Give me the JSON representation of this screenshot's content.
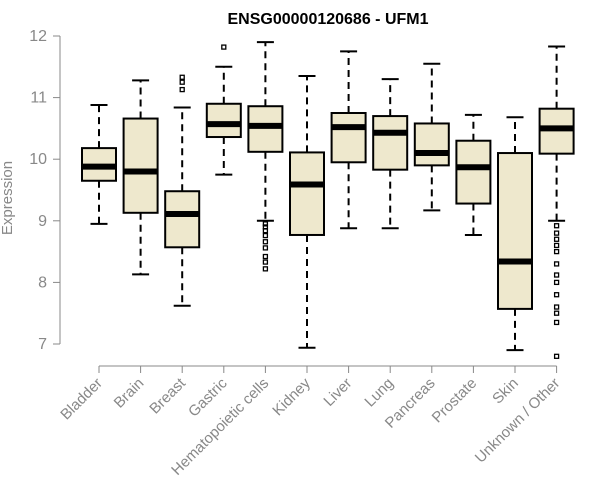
{
  "chart_data": {
    "type": "box",
    "title": "ENSG00000120686 - UFM1",
    "xlabel": "",
    "ylabel": "Expression",
    "ylim": [
      6.85,
      12.0
    ],
    "yticks": [
      7,
      8,
      9,
      10,
      11,
      12
    ],
    "box_fill": "#eee8cd",
    "grid": false,
    "categories": [
      "Bladder",
      "Brain",
      "Breast",
      "Gastric",
      "Hematopoietic cells",
      "Kidney",
      "Liver",
      "Lung",
      "Pancreas",
      "Prostate",
      "Skin",
      "Unknown / Other"
    ],
    "boxes": [
      {
        "label": "Bladder",
        "whisker_low": 8.95,
        "q1": 9.65,
        "median": 9.88,
        "q3": 10.18,
        "whisker_high": 10.88,
        "outliers": []
      },
      {
        "label": "Brain",
        "whisker_low": 8.13,
        "q1": 9.13,
        "median": 9.8,
        "q3": 10.66,
        "whisker_high": 11.28,
        "outliers": []
      },
      {
        "label": "Breast",
        "whisker_low": 7.62,
        "q1": 8.57,
        "median": 9.11,
        "q3": 9.48,
        "whisker_high": 10.84,
        "outliers": [
          11.13,
          11.25,
          11.33
        ]
      },
      {
        "label": "Gastric",
        "whisker_low": 9.75,
        "q1": 10.36,
        "median": 10.57,
        "q3": 10.9,
        "whisker_high": 11.5,
        "outliers": [
          11.82
        ]
      },
      {
        "label": "Hematopoietic cells",
        "whisker_low": 9.0,
        "q1": 10.12,
        "median": 10.54,
        "q3": 10.86,
        "whisker_high": 11.9,
        "outliers": [
          8.22,
          8.33,
          8.42,
          8.56,
          8.66,
          8.76,
          8.84,
          8.9,
          8.95
        ]
      },
      {
        "label": "Kidney",
        "whisker_low": 6.94,
        "q1": 8.77,
        "median": 9.59,
        "q3": 10.11,
        "whisker_high": 11.35,
        "outliers": []
      },
      {
        "label": "Liver",
        "whisker_low": 8.88,
        "q1": 9.95,
        "median": 10.52,
        "q3": 10.75,
        "whisker_high": 11.75,
        "outliers": []
      },
      {
        "label": "Lung",
        "whisker_low": 8.88,
        "q1": 9.83,
        "median": 10.43,
        "q3": 10.7,
        "whisker_high": 11.3,
        "outliers": []
      },
      {
        "label": "Pancreas",
        "whisker_low": 9.17,
        "q1": 9.9,
        "median": 10.1,
        "q3": 10.58,
        "whisker_high": 11.55,
        "outliers": []
      },
      {
        "label": "Prostate",
        "whisker_low": 8.77,
        "q1": 9.28,
        "median": 9.87,
        "q3": 10.3,
        "whisker_high": 10.72,
        "outliers": []
      },
      {
        "label": "Skin",
        "whisker_low": 6.9,
        "q1": 7.57,
        "median": 8.34,
        "q3": 10.1,
        "whisker_high": 10.68,
        "outliers": []
      },
      {
        "label": "Unknown / Other",
        "whisker_low": 9.0,
        "q1": 10.09,
        "median": 10.5,
        "q3": 10.82,
        "whisker_high": 11.83,
        "outliers": [
          6.8,
          7.35,
          7.5,
          7.6,
          7.8,
          8.0,
          8.12,
          8.3,
          8.5,
          8.6,
          8.7,
          8.8,
          8.92
        ]
      }
    ]
  }
}
